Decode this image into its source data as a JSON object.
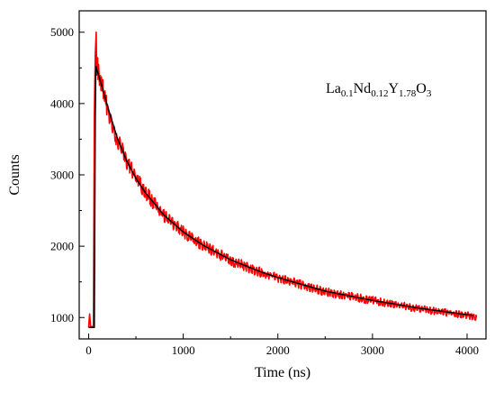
{
  "chart_data": {
    "type": "line",
    "title": "",
    "xlabel": "Time (ns)",
    "ylabel": "Counts",
    "xlim": [
      -100,
      4200
    ],
    "ylim": [
      700,
      5300
    ],
    "x_ticks": [
      0,
      1000,
      2000,
      3000,
      4000
    ],
    "y_ticks": [
      1000,
      2000,
      3000,
      4000,
      5000
    ],
    "grid": false,
    "legend": "none",
    "annotation": {
      "parts": [
        {
          "text": "La",
          "sub": false
        },
        {
          "text": "0.1",
          "sub": true
        },
        {
          "text": "Nd",
          "sub": false
        },
        {
          "text": "0.12",
          "sub": true
        },
        {
          "text": "Y",
          "sub": false
        },
        {
          "text": "1.78",
          "sub": true
        },
        {
          "text": "O",
          "sub": false
        },
        {
          "text": "3",
          "sub": true
        }
      ]
    },
    "series": [
      {
        "role": "measured",
        "color": "#ff0000",
        "x": [
          0,
          10,
          20,
          30,
          40,
          50,
          60,
          70,
          80,
          85,
          90,
          100,
          120,
          150,
          200,
          300,
          400,
          500,
          600,
          800,
          1000,
          1200,
          1500,
          1800,
          2000,
          2500,
          3000,
          3500,
          4000,
          4100
        ],
        "values": [
          860,
          1050,
          880,
          870,
          860,
          900,
          3800,
          4700,
          5000,
          4400,
          4600,
          4450,
          4300,
          4200,
          3900,
          3500,
          3200,
          2960,
          2750,
          2430,
          2200,
          2020,
          1800,
          1640,
          1560,
          1360,
          1240,
          1120,
          1030,
          1000
        ]
      },
      {
        "role": "fit",
        "color": "#000000",
        "x": [
          0,
          60,
          66,
          70,
          75,
          80,
          85,
          90,
          100,
          120,
          150,
          200,
          300,
          400,
          500,
          600,
          800,
          1000,
          1200,
          1500,
          1800,
          2000,
          2500,
          3000,
          3500,
          4000,
          4070
        ],
        "values": [
          860,
          860,
          2500,
          3800,
          4400,
          4520,
          4480,
          4460,
          4420,
          4330,
          4200,
          3960,
          3530,
          3200,
          2950,
          2750,
          2430,
          2200,
          2020,
          1810,
          1650,
          1560,
          1370,
          1240,
          1130,
          1040,
          1030
        ]
      }
    ]
  }
}
